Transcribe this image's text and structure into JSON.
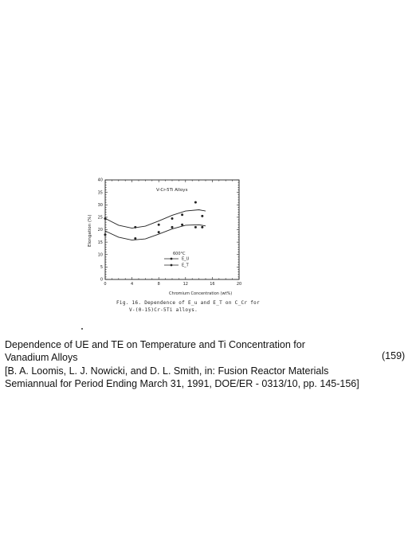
{
  "chart_data": {
    "type": "line",
    "title": "V-Cr-5Ti Alloys",
    "xlabel": "Chromium Concentration (wt%)",
    "ylabel": "Elongation (%)",
    "xlim": [
      0,
      20
    ],
    "ylim": [
      0,
      40
    ],
    "xticks": [
      "0",
      "4",
      "8",
      "12",
      "16",
      "20"
    ],
    "yticks": [
      "0",
      "5",
      "10",
      "15",
      "20",
      "25",
      "30",
      "35",
      "40"
    ],
    "legend_title": "600°C",
    "legend_position": "center",
    "grid": false,
    "series": [
      {
        "name": "E_U",
        "marker": "filled",
        "points": [
          [
            0,
            18
          ],
          [
            4.5,
            16.5
          ],
          [
            8,
            19
          ],
          [
            10,
            21
          ],
          [
            11.5,
            22
          ],
          [
            13.5,
            21
          ],
          [
            14.5,
            21
          ]
        ],
        "fit": [
          [
            0,
            19.5
          ],
          [
            2,
            17
          ],
          [
            4,
            15.8
          ],
          [
            6,
            16.3
          ],
          [
            8,
            18.2
          ],
          [
            10,
            20.3
          ],
          [
            12,
            21.8
          ],
          [
            14,
            22
          ],
          [
            15,
            21.5
          ]
        ]
      },
      {
        "name": "E_T",
        "marker": "filled",
        "points": [
          [
            0,
            24.5
          ],
          [
            4.5,
            21
          ],
          [
            8,
            22
          ],
          [
            10,
            24.5
          ],
          [
            11.5,
            26
          ],
          [
            13.5,
            31
          ],
          [
            14.5,
            25.5
          ]
        ],
        "fit": [
          [
            0,
            24.5
          ],
          [
            2,
            21.8
          ],
          [
            4,
            20.6
          ],
          [
            6,
            21.4
          ],
          [
            8,
            23.5
          ],
          [
            10,
            25.8
          ],
          [
            12,
            27.5
          ],
          [
            14,
            28
          ],
          [
            15,
            27.5
          ]
        ]
      }
    ]
  },
  "figure": {
    "caption_line1": "Fig. 16. Dependence of E_u and E_T on C_Cr for",
    "caption_line2": "V-(0-15)Cr-5Ti alloys."
  },
  "description": {
    "title_line1": "Dependence of UE and TE on Temperature and Ti Concentration for",
    "title_line2": "Vanadium Alloys",
    "ref_number": "(159)",
    "citation_line1": "[B. A. Loomis, L. J. Nowicki, and D. L. Smith, in: Fusion Reactor Materials",
    "citation_line2": "Semiannual for Period Ending March 31, 1991, DOE/ER - 0313/10, pp. 145-156]"
  }
}
